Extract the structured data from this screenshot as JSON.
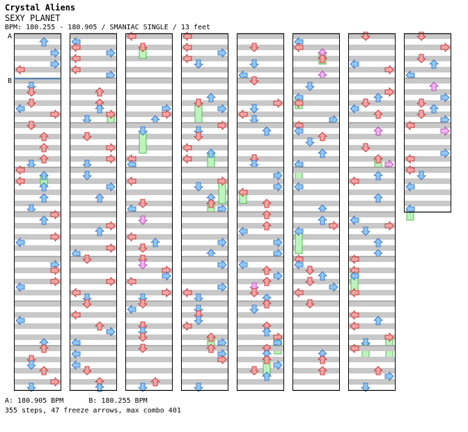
{
  "header": {
    "title": "Crystal Aliens",
    "subtitle": "SEXY PLANET",
    "info": "BPM: 180.255 - 180.905 / SMANIAC SINGLE / 13 feet"
  },
  "markers": {
    "a": "A",
    "b": "B"
  },
  "footer": {
    "bpm": "A: 180.905 BPM      B: 180.255 BPM",
    "stats": "355 steps, 47 freeze arrows, max combo 401"
  },
  "chart_data": {
    "type": "step-chart",
    "columns": 8,
    "measures_per_column": 8,
    "measures_last_column": 4,
    "lanes": [
      "left",
      "down",
      "up",
      "right"
    ],
    "steps": 355,
    "freeze_arrows": 47,
    "max_combo": 401,
    "bpm_changes": [
      {
        "label": "A",
        "bpm": 180.905
      },
      {
        "label": "B",
        "bpm": 180.255
      }
    ],
    "colors": {
      "quarter": "#f4a3a3",
      "eighth": "#8ec8f4",
      "sixteenth": "#f4b3f4",
      "freeze": "#bdf4bd",
      "grid_band": "#c8c8c8"
    }
  }
}
